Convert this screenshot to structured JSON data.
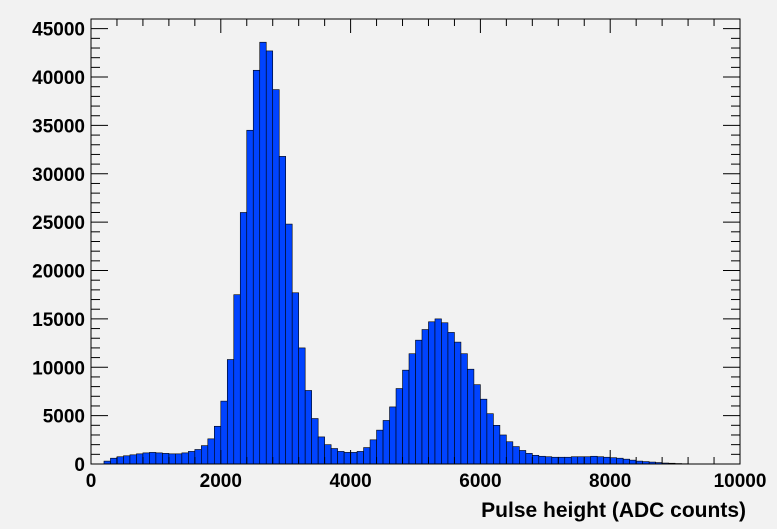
{
  "chart_data": {
    "type": "bar",
    "title": "",
    "xlabel": "Pulse height (ADC counts)",
    "ylabel": "",
    "xlim": [
      0,
      10000
    ],
    "ylim": [
      0,
      46000
    ],
    "bin_width": 100,
    "grid": false,
    "legend": "none",
    "colors": {
      "fill": "#0043ff",
      "stroke": "#000000",
      "background": "#f2f2f2"
    },
    "x_ticks": [
      0,
      2000,
      4000,
      6000,
      8000,
      10000
    ],
    "x_tick_labels": [
      "0",
      "2000",
      "4000",
      "6000",
      "8000",
      "10000"
    ],
    "y_ticks": [
      0,
      5000,
      10000,
      15000,
      20000,
      25000,
      30000,
      35000,
      40000,
      45000
    ],
    "y_tick_labels": [
      "0",
      "5000",
      "10000",
      "15000",
      "20000",
      "25000",
      "30000",
      "35000",
      "40000",
      "45000"
    ],
    "bin_edges_start": 0,
    "counts": [
      0,
      0,
      300,
      600,
      750,
      850,
      950,
      1050,
      1150,
      1200,
      1150,
      1100,
      1050,
      1050,
      1150,
      1300,
      1500,
      1900,
      2600,
      3900,
      6500,
      10800,
      17500,
      26000,
      34500,
      40700,
      43600,
      42700,
      38700,
      31800,
      24800,
      17700,
      12000,
      7600,
      4700,
      2800,
      2000,
      1600,
      1300,
      1200,
      1200,
      1300,
      1700,
      2500,
      3500,
      4500,
      5900,
      7800,
      9700,
      11400,
      12800,
      13900,
      14700,
      15000,
      14600,
      13600,
      12600,
      11400,
      9800,
      8200,
      6700,
      5200,
      4000,
      3000,
      2300,
      1800,
      1400,
      1100,
      900,
      800,
      750,
      700,
      700,
      700,
      750,
      750,
      750,
      800,
      750,
      700,
      650,
      600,
      500,
      400,
      300,
      250,
      200,
      150,
      100,
      80,
      50,
      30,
      20,
      10,
      5,
      0,
      0,
      0,
      0,
      0
    ]
  }
}
